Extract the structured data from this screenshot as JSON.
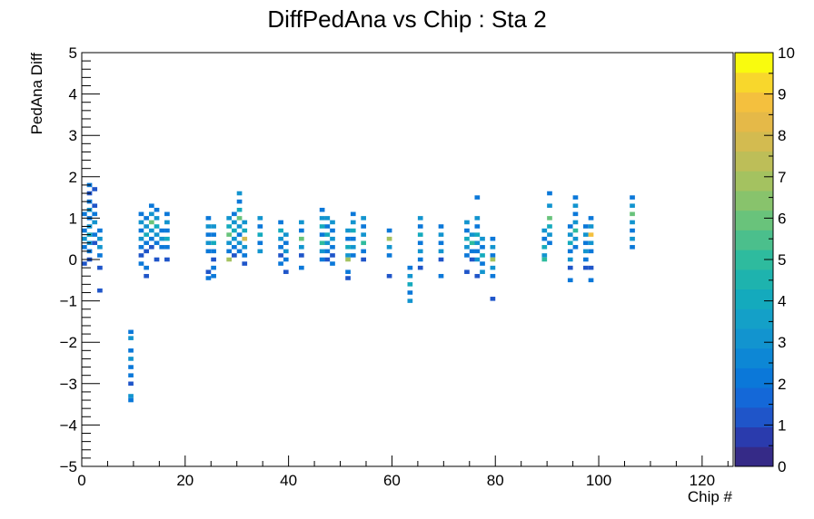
{
  "chart_data": {
    "type": "heatmap",
    "title": "DiffPedAna vs Chip : Sta 2",
    "xlabel": "Chip #",
    "ylabel": "PedAna Diff",
    "xlim": [
      0,
      126
    ],
    "ylim": [
      -5,
      5
    ],
    "xticks": [
      0,
      20,
      40,
      60,
      80,
      100,
      120
    ],
    "yticks": [
      -5,
      -4,
      -3,
      -2,
      -1,
      0,
      1,
      2,
      3,
      4,
      5
    ],
    "zlim": [
      0,
      10
    ],
    "zticks": [
      0,
      1,
      2,
      3,
      4,
      5,
      6,
      7,
      8,
      9,
      10
    ],
    "legend": "right",
    "grid": false,
    "colors": {
      "palette": [
        "#352a87",
        "#2a3bad",
        "#1f55c9",
        "#1468d8",
        "#0b78d9",
        "#0d87d5",
        "#1294cf",
        "#14a0c8",
        "#14aabd",
        "#1eb3ae",
        "#2ebb9e",
        "#4bbf8c",
        "#69c37b",
        "#88c36c",
        "#a4c260",
        "#bdbe58",
        "#d3bb50",
        "#e5b948",
        "#f4c03e",
        "#f8d72c",
        "#f9fb0e"
      ]
    },
    "bins": [
      [
        0,
        0.5,
        3
      ],
      [
        0,
        0.7,
        2
      ],
      [
        0,
        0.3,
        2
      ],
      [
        0,
        -0.1,
        1
      ],
      [
        0,
        1.1,
        2
      ],
      [
        1,
        0.4,
        3
      ],
      [
        1,
        0.6,
        4
      ],
      [
        1,
        0.8,
        3
      ],
      [
        1,
        1.0,
        2
      ],
      [
        1,
        1.2,
        3
      ],
      [
        1,
        1.4,
        2
      ],
      [
        1,
        1.6,
        1
      ],
      [
        1,
        1.8,
        2
      ],
      [
        1,
        0.2,
        2
      ],
      [
        1,
        0.0,
        1
      ],
      [
        2,
        0.9,
        3
      ],
      [
        2,
        1.1,
        2
      ],
      [
        2,
        1.3,
        1
      ],
      [
        2,
        0.6,
        2
      ],
      [
        2,
        0.4,
        1
      ],
      [
        2,
        1.7,
        1
      ],
      [
        3,
        0.5,
        3
      ],
      [
        3,
        0.7,
        2
      ],
      [
        3,
        0.3,
        3
      ],
      [
        3,
        0.1,
        2
      ],
      [
        3,
        -0.2,
        1
      ],
      [
        3,
        -0.75,
        1
      ],
      [
        9,
        -1.75,
        2
      ],
      [
        9,
        -1.9,
        3
      ],
      [
        9,
        -2.2,
        2
      ],
      [
        9,
        -2.4,
        3
      ],
      [
        9,
        -2.6,
        2
      ],
      [
        9,
        -2.8,
        2
      ],
      [
        9,
        -3.0,
        1
      ],
      [
        9,
        -3.3,
        3
      ],
      [
        9,
        -3.4,
        2
      ],
      [
        11,
        1.1,
        2
      ],
      [
        11,
        0.9,
        3
      ],
      [
        11,
        0.7,
        2
      ],
      [
        11,
        0.5,
        3
      ],
      [
        11,
        0.3,
        2
      ],
      [
        11,
        0.1,
        1
      ],
      [
        11,
        -0.1,
        2
      ],
      [
        12,
        1.0,
        2
      ],
      [
        12,
        0.8,
        3
      ],
      [
        12,
        0.6,
        4
      ],
      [
        12,
        0.4,
        2
      ],
      [
        12,
        0.2,
        1
      ],
      [
        12,
        -0.2,
        2
      ],
      [
        12,
        -0.4,
        1
      ],
      [
        13,
        1.3,
        2
      ],
      [
        13,
        1.1,
        3
      ],
      [
        13,
        0.9,
        6
      ],
      [
        13,
        0.7,
        3
      ],
      [
        13,
        0.5,
        2
      ],
      [
        13,
        0.3,
        1
      ],
      [
        14,
        1.2,
        2
      ],
      [
        14,
        1.0,
        3
      ],
      [
        14,
        0.8,
        4
      ],
      [
        14,
        0.6,
        3
      ],
      [
        14,
        0.4,
        2
      ],
      [
        14,
        0.0,
        1
      ],
      [
        15,
        0.7,
        2
      ],
      [
        15,
        0.5,
        3
      ],
      [
        15,
        0.3,
        2
      ],
      [
        16,
        1.1,
        2
      ],
      [
        16,
        0.9,
        3
      ],
      [
        16,
        0.7,
        2
      ],
      [
        16,
        0.5,
        4
      ],
      [
        16,
        0.3,
        2
      ],
      [
        16,
        0.0,
        1
      ],
      [
        24,
        1.0,
        2
      ],
      [
        24,
        0.8,
        3
      ],
      [
        24,
        0.6,
        2
      ],
      [
        24,
        0.4,
        3
      ],
      [
        24,
        0.2,
        2
      ],
      [
        24,
        -0.3,
        1
      ],
      [
        24,
        -0.45,
        2
      ],
      [
        25,
        0.8,
        3
      ],
      [
        25,
        0.6,
        2
      ],
      [
        25,
        0.4,
        4
      ],
      [
        25,
        0.2,
        2
      ],
      [
        25,
        0.0,
        1
      ],
      [
        25,
        -0.2,
        2
      ],
      [
        25,
        -0.4,
        2
      ],
      [
        28,
        1.0,
        3
      ],
      [
        28,
        0.8,
        4
      ],
      [
        28,
        0.6,
        6
      ],
      [
        28,
        0.4,
        3
      ],
      [
        28,
        0.2,
        2
      ],
      [
        28,
        0.0,
        7
      ],
      [
        29,
        1.1,
        2
      ],
      [
        29,
        0.9,
        3
      ],
      [
        29,
        0.7,
        4
      ],
      [
        29,
        0.5,
        3
      ],
      [
        29,
        0.3,
        2
      ],
      [
        29,
        0.1,
        1
      ],
      [
        30,
        1.6,
        3
      ],
      [
        30,
        1.4,
        2
      ],
      [
        30,
        1.2,
        4
      ],
      [
        30,
        1.0,
        6
      ],
      [
        30,
        0.8,
        3
      ],
      [
        30,
        0.6,
        2
      ],
      [
        30,
        0.4,
        3
      ],
      [
        30,
        0.2,
        2
      ],
      [
        31,
        0.9,
        3
      ],
      [
        31,
        0.7,
        4
      ],
      [
        31,
        0.5,
        8
      ],
      [
        31,
        0.3,
        3
      ],
      [
        31,
        0.1,
        2
      ],
      [
        31,
        -0.1,
        1
      ],
      [
        34,
        1.0,
        3
      ],
      [
        34,
        0.8,
        2
      ],
      [
        34,
        0.6,
        4
      ],
      [
        34,
        0.4,
        2
      ],
      [
        34,
        0.2,
        3
      ],
      [
        38,
        0.9,
        2
      ],
      [
        38,
        0.7,
        4
      ],
      [
        38,
        0.5,
        3
      ],
      [
        38,
        0.3,
        2
      ],
      [
        38,
        0.1,
        1
      ],
      [
        38,
        -0.1,
        2
      ],
      [
        39,
        0.6,
        3
      ],
      [
        39,
        0.4,
        2
      ],
      [
        39,
        0.2,
        3
      ],
      [
        39,
        0.0,
        2
      ],
      [
        39,
        -0.3,
        1
      ],
      [
        42,
        0.9,
        3
      ],
      [
        42,
        0.7,
        2
      ],
      [
        42,
        0.5,
        6
      ],
      [
        42,
        0.3,
        3
      ],
      [
        42,
        0.1,
        1
      ],
      [
        42,
        -0.2,
        2
      ],
      [
        46,
        1.2,
        2
      ],
      [
        46,
        1.0,
        3
      ],
      [
        46,
        0.8,
        4
      ],
      [
        46,
        0.6,
        2
      ],
      [
        46,
        0.4,
        5
      ],
      [
        46,
        0.2,
        3
      ],
      [
        46,
        0.0,
        2
      ],
      [
        47,
        1.0,
        3
      ],
      [
        47,
        0.8,
        2
      ],
      [
        47,
        0.6,
        4
      ],
      [
        47,
        0.4,
        3
      ],
      [
        47,
        0.2,
        2
      ],
      [
        47,
        0.0,
        1
      ],
      [
        48,
        0.9,
        3
      ],
      [
        48,
        0.7,
        2
      ],
      [
        48,
        0.5,
        3
      ],
      [
        48,
        0.3,
        2
      ],
      [
        48,
        0.1,
        1
      ],
      [
        48,
        -0.1,
        2
      ],
      [
        51,
        0.7,
        3
      ],
      [
        51,
        0.5,
        2
      ],
      [
        51,
        0.3,
        4
      ],
      [
        51,
        0.1,
        3
      ],
      [
        51,
        0.0,
        7
      ],
      [
        51,
        -0.3,
        2
      ],
      [
        51,
        -0.45,
        1
      ],
      [
        52,
        1.1,
        2
      ],
      [
        52,
        0.9,
        3
      ],
      [
        52,
        0.7,
        4
      ],
      [
        52,
        0.5,
        2
      ],
      [
        52,
        0.3,
        3
      ],
      [
        52,
        0.1,
        2
      ],
      [
        54,
        1.0,
        3
      ],
      [
        54,
        0.8,
        2
      ],
      [
        54,
        0.6,
        3
      ],
      [
        54,
        0.4,
        5
      ],
      [
        54,
        0.2,
        2
      ],
      [
        54,
        0.0,
        1
      ],
      [
        59,
        0.7,
        2
      ],
      [
        59,
        0.5,
        7
      ],
      [
        59,
        0.3,
        3
      ],
      [
        59,
        0.1,
        2
      ],
      [
        59,
        -0.4,
        1
      ],
      [
        63,
        -0.2,
        2
      ],
      [
        63,
        -0.4,
        3
      ],
      [
        63,
        -0.6,
        4
      ],
      [
        63,
        -0.8,
        2
      ],
      [
        63,
        -1.0,
        3
      ],
      [
        65,
        1.0,
        3
      ],
      [
        65,
        0.8,
        2
      ],
      [
        65,
        0.6,
        4
      ],
      [
        65,
        0.4,
        2
      ],
      [
        65,
        0.2,
        3
      ],
      [
        65,
        0.0,
        2
      ],
      [
        65,
        -0.2,
        1
      ],
      [
        69,
        0.8,
        2
      ],
      [
        69,
        0.6,
        3
      ],
      [
        69,
        0.4,
        2
      ],
      [
        69,
        0.2,
        3
      ],
      [
        69,
        0.0,
        1
      ],
      [
        69,
        -0.4,
        2
      ],
      [
        74,
        0.9,
        3
      ],
      [
        74,
        0.7,
        2
      ],
      [
        74,
        0.5,
        4
      ],
      [
        74,
        0.3,
        3
      ],
      [
        74,
        0.1,
        2
      ],
      [
        74,
        -0.3,
        1
      ],
      [
        75,
        0.6,
        3
      ],
      [
        75,
        0.4,
        5
      ],
      [
        75,
        0.2,
        2
      ],
      [
        75,
        0.0,
        1
      ],
      [
        76,
        1.5,
        2
      ],
      [
        76,
        1.0,
        3
      ],
      [
        76,
        0.8,
        2
      ],
      [
        76,
        0.6,
        4
      ],
      [
        76,
        0.4,
        3
      ],
      [
        76,
        0.2,
        2
      ],
      [
        76,
        0.0,
        3
      ],
      [
        76,
        -0.4,
        1
      ],
      [
        77,
        0.5,
        3
      ],
      [
        77,
        0.3,
        2
      ],
      [
        77,
        0.1,
        4
      ],
      [
        77,
        -0.1,
        2
      ],
      [
        77,
        -0.3,
        3
      ],
      [
        79,
        0.5,
        2
      ],
      [
        79,
        0.3,
        3
      ],
      [
        79,
        0.1,
        2
      ],
      [
        79,
        0.0,
        7
      ],
      [
        79,
        -0.2,
        3
      ],
      [
        79,
        -0.4,
        2
      ],
      [
        79,
        -0.95,
        1
      ],
      [
        89,
        0.7,
        3
      ],
      [
        89,
        0.5,
        2
      ],
      [
        89,
        0.3,
        4
      ],
      [
        89,
        0.1,
        3
      ],
      [
        89,
        0.0,
        5
      ],
      [
        90,
        1.6,
        2
      ],
      [
        90,
        1.3,
        3
      ],
      [
        90,
        1.0,
        6
      ],
      [
        90,
        0.8,
        4
      ],
      [
        90,
        0.6,
        3
      ],
      [
        90,
        0.4,
        2
      ],
      [
        94,
        0.8,
        2
      ],
      [
        94,
        0.6,
        3
      ],
      [
        94,
        0.4,
        4
      ],
      [
        94,
        0.2,
        2
      ],
      [
        94,
        0.0,
        3
      ],
      [
        94,
        -0.2,
        1
      ],
      [
        94,
        -0.5,
        2
      ],
      [
        95,
        1.5,
        2
      ],
      [
        95,
        1.3,
        3
      ],
      [
        95,
        1.1,
        2
      ],
      [
        95,
        0.9,
        3
      ],
      [
        95,
        0.7,
        5
      ],
      [
        95,
        0.5,
        3
      ],
      [
        95,
        0.3,
        2
      ],
      [
        97,
        0.8,
        2
      ],
      [
        97,
        0.6,
        3
      ],
      [
        97,
        0.4,
        2
      ],
      [
        97,
        0.2,
        3
      ],
      [
        97,
        0.0,
        2
      ],
      [
        97,
        -0.2,
        1
      ],
      [
        98,
        1.0,
        2
      ],
      [
        98,
        0.8,
        3
      ],
      [
        98,
        0.6,
        9
      ],
      [
        98,
        0.4,
        3
      ],
      [
        98,
        0.2,
        2
      ],
      [
        98,
        -0.2,
        1
      ],
      [
        98,
        -0.5,
        2
      ],
      [
        106,
        1.5,
        2
      ],
      [
        106,
        1.3,
        3
      ],
      [
        106,
        1.1,
        6
      ],
      [
        106,
        0.9,
        3
      ],
      [
        106,
        0.7,
        2
      ],
      [
        106,
        0.5,
        3
      ],
      [
        106,
        0.3,
        2
      ]
    ]
  }
}
